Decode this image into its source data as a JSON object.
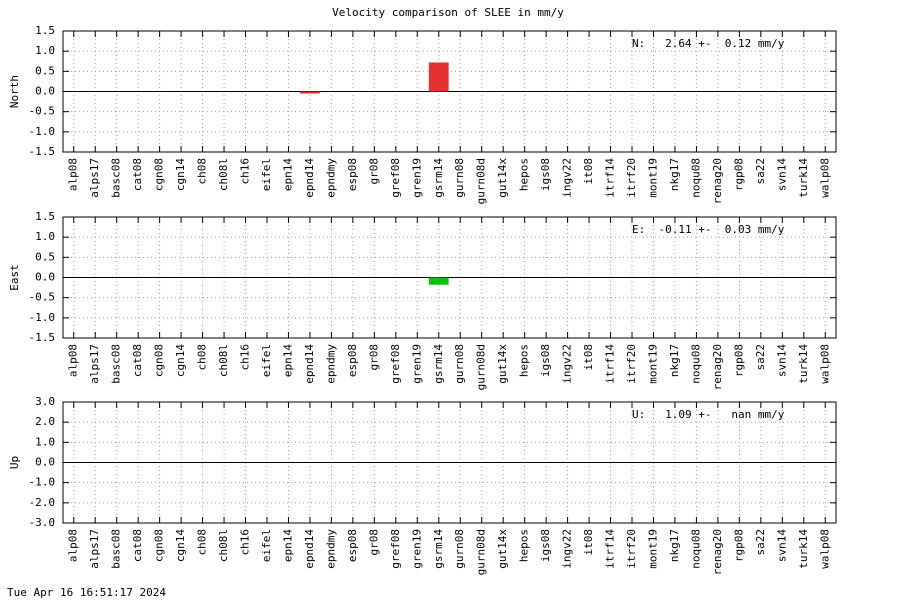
{
  "title": "Velocity comparison of SLEE in mm/y",
  "footer": "Tue Apr 16 16:51:17 2024",
  "chart_data": [
    {
      "type": "bar",
      "ylabel": "North",
      "annotation": "N:   2.64 +-  0.12 mm/y",
      "color": "#e83030",
      "grid": true,
      "categories": [
        "alp08",
        "alps17",
        "basc08",
        "cat08",
        "cgn08",
        "cgn14",
        "ch08",
        "ch08l",
        "ch16",
        "eifel",
        "epn14",
        "epnd14",
        "epndmy",
        "esp08",
        "gr08",
        "gref08",
        "gren19",
        "gsrm14",
        "gurn08",
        "gurn08d",
        "gut14x",
        "hepos",
        "igs08",
        "ingv22",
        "it08",
        "itrf14",
        "itrf20",
        "mont19",
        "nkg17",
        "noqu08",
        "renag20",
        "rgp08",
        "sa22",
        "svn14",
        "turk14",
        "walp08"
      ],
      "values": [
        0,
        0,
        0,
        0,
        0,
        0,
        0,
        0,
        0,
        0,
        0,
        -0.05,
        0,
        0,
        0,
        0,
        0,
        0.72,
        0,
        0,
        0,
        0,
        0,
        0,
        0,
        0,
        0,
        0,
        0,
        0,
        0,
        0,
        0,
        0,
        0,
        0
      ],
      "ylim": [
        -1.5,
        1.5
      ],
      "yticks": [
        1.5,
        {
          "value": 1.0,
          "label": "1.0"
        },
        0.5,
        {
          "value": 0,
          "label": "0.0"
        },
        -0.5,
        {
          "value": -1.0,
          "label": "-1.0"
        },
        -1.5
      ]
    },
    {
      "type": "bar",
      "ylabel": "East",
      "annotation": "E:  -0.11 +-  0.03 mm/y",
      "color": "#10c010",
      "grid": true,
      "categories": [
        "alp08",
        "alps17",
        "basc08",
        "cat08",
        "cgn08",
        "cgn14",
        "ch08",
        "ch08l",
        "ch16",
        "eifel",
        "epn14",
        "epnd14",
        "epndmy",
        "esp08",
        "gr08",
        "gref08",
        "gren19",
        "gsrm14",
        "gurn08",
        "gurn08d",
        "gut14x",
        "hepos",
        "igs08",
        "ingv22",
        "it08",
        "itrf14",
        "itrf20",
        "mont19",
        "nkg17",
        "noqu08",
        "renag20",
        "rgp08",
        "sa22",
        "svn14",
        "turk14",
        "walp08"
      ],
      "values": [
        0,
        0,
        0,
        0,
        0,
        0,
        0,
        0,
        0,
        0,
        0,
        0,
        0,
        0,
        0,
        0,
        0,
        -0.18,
        0,
        0,
        0,
        0,
        0,
        0,
        0,
        0,
        0,
        0,
        0,
        0,
        0,
        0,
        0,
        0,
        0,
        0
      ],
      "ylim": [
        -1.5,
        1.5
      ],
      "yticks": [
        1.5,
        {
          "value": 1.0,
          "label": "1.0"
        },
        0.5,
        {
          "value": 0,
          "label": "0.0"
        },
        -0.5,
        {
          "value": -1.0,
          "label": "-1.0"
        },
        -1.5
      ]
    },
    {
      "type": "bar",
      "ylabel": "Up",
      "annotation": "U:   1.09 +-   nan mm/y",
      "color": "#3050e0",
      "grid": true,
      "categories": [
        "alp08",
        "alps17",
        "basc08",
        "cat08",
        "cgn08",
        "cgn14",
        "ch08",
        "ch08l",
        "ch16",
        "eifel",
        "epn14",
        "epnd14",
        "epndmy",
        "esp08",
        "gr08",
        "gref08",
        "gren19",
        "gsrm14",
        "gurn08",
        "gurn08d",
        "gut14x",
        "hepos",
        "igs08",
        "ingv22",
        "it08",
        "itrf14",
        "itrf20",
        "mont19",
        "nkg17",
        "noqu08",
        "renag20",
        "rgp08",
        "sa22",
        "svn14",
        "turk14",
        "walp08"
      ],
      "values": [
        0,
        0,
        0,
        0,
        0,
        0,
        0,
        0,
        0,
        0,
        0,
        0,
        0,
        0,
        0,
        0,
        0,
        0,
        0,
        0,
        0,
        0,
        0,
        0,
        0,
        0,
        0,
        0,
        0,
        0,
        0,
        0,
        0,
        0,
        0,
        0
      ],
      "ylim": [
        -3.0,
        3.0
      ],
      "yticks": [
        {
          "value": 3.0,
          "label": "3.0"
        },
        {
          "value": 2.0,
          "label": "2.0"
        },
        {
          "value": 1.0,
          "label": "1.0"
        },
        {
          "value": 0,
          "label": "0.0"
        },
        {
          "value": -1.0,
          "label": "-1.0"
        },
        {
          "value": -2.0,
          "label": "-2.0"
        },
        {
          "value": -3.0,
          "label": "-3.0"
        }
      ]
    }
  ]
}
